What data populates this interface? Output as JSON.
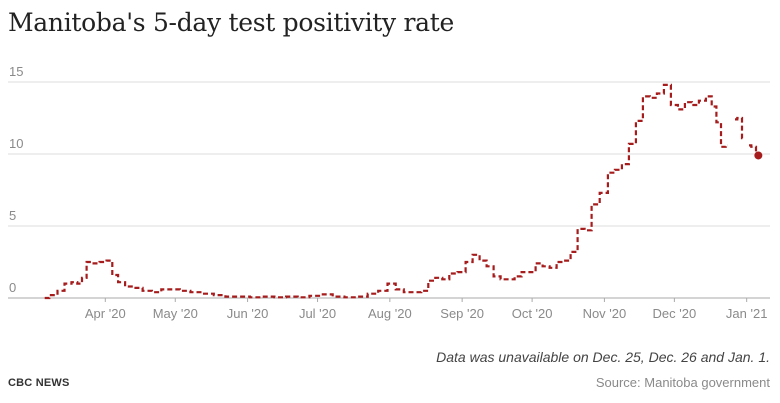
{
  "title": "Manitoba's 5-day test positivity rate",
  "note": "Data was unavailable on Dec. 25, Dec. 26 and Jan. 1.",
  "brand": "CBC NEWS",
  "source": "Source: Manitoba government",
  "colors": {
    "line": "#a61c1c",
    "grid": "#dddddd",
    "axis": "#aaaaaa",
    "text": "#8a8a8a"
  },
  "chart_data": {
    "type": "line",
    "title": "Manitoba's 5-day test positivity rate",
    "xlabel": "",
    "ylabel": "",
    "ylim": [
      0,
      15
    ],
    "yticks": [
      0,
      5,
      10,
      15
    ],
    "xticks": [
      {
        "label": "Apr '20",
        "date": "2020-04-01"
      },
      {
        "label": "May '20",
        "date": "2020-05-01"
      },
      {
        "label": "Jun '20",
        "date": "2020-06-01"
      },
      {
        "label": "Jul '20",
        "date": "2020-07-01"
      },
      {
        "label": "Aug '20",
        "date": "2020-08-01"
      },
      {
        "label": "Sep '20",
        "date": "2020-09-01"
      },
      {
        "label": "Oct '20",
        "date": "2020-10-01"
      },
      {
        "label": "Nov '20",
        "date": "2020-11-01"
      },
      {
        "label": "Dec '20",
        "date": "2020-12-01"
      },
      {
        "label": "Jan '21",
        "date": "2021-01-01"
      }
    ],
    "grid": true,
    "line_style": "dashed",
    "series": [
      {
        "points": [
          [
            "2020-03-06",
            0.0
          ],
          [
            "2020-03-10",
            0.2
          ],
          [
            "2020-03-13",
            0.5
          ],
          [
            "2020-03-16",
            1.0
          ],
          [
            "2020-03-19",
            1.1
          ],
          [
            "2020-03-21",
            1.0
          ],
          [
            "2020-03-23",
            1.4
          ],
          [
            "2020-03-25",
            2.5
          ],
          [
            "2020-03-28",
            2.4
          ],
          [
            "2020-03-31",
            2.5
          ],
          [
            "2020-04-03",
            2.6
          ],
          [
            "2020-04-05",
            1.6
          ],
          [
            "2020-04-08",
            1.1
          ],
          [
            "2020-04-11",
            0.8
          ],
          [
            "2020-04-15",
            0.7
          ],
          [
            "2020-04-19",
            0.5
          ],
          [
            "2020-04-23",
            0.4
          ],
          [
            "2020-04-27",
            0.6
          ],
          [
            "2020-05-01",
            0.6
          ],
          [
            "2020-05-05",
            0.5
          ],
          [
            "2020-05-10",
            0.4
          ],
          [
            "2020-05-15",
            0.3
          ],
          [
            "2020-05-20",
            0.2
          ],
          [
            "2020-05-25",
            0.1
          ],
          [
            "2020-05-30",
            0.1
          ],
          [
            "2020-06-05",
            0.05
          ],
          [
            "2020-06-10",
            0.1
          ],
          [
            "2020-06-15",
            0.05
          ],
          [
            "2020-06-20",
            0.1
          ],
          [
            "2020-06-25",
            0.05
          ],
          [
            "2020-06-30",
            0.15
          ],
          [
            "2020-07-05",
            0.25
          ],
          [
            "2020-07-10",
            0.1
          ],
          [
            "2020-07-15",
            0.05
          ],
          [
            "2020-07-20",
            0.1
          ],
          [
            "2020-07-25",
            0.3
          ],
          [
            "2020-07-29",
            0.5
          ],
          [
            "2020-08-02",
            1.0
          ],
          [
            "2020-08-05",
            0.6
          ],
          [
            "2020-08-09",
            0.4
          ],
          [
            "2020-08-13",
            0.4
          ],
          [
            "2020-08-16",
            0.5
          ],
          [
            "2020-08-19",
            1.2
          ],
          [
            "2020-08-22",
            1.4
          ],
          [
            "2020-08-25",
            1.3
          ],
          [
            "2020-08-28",
            1.7
          ],
          [
            "2020-09-01",
            1.8
          ],
          [
            "2020-09-04",
            2.5
          ],
          [
            "2020-09-07",
            3.0
          ],
          [
            "2020-09-10",
            2.6
          ],
          [
            "2020-09-13",
            2.2
          ],
          [
            "2020-09-16",
            1.5
          ],
          [
            "2020-09-19",
            1.3
          ],
          [
            "2020-09-22",
            1.3
          ],
          [
            "2020-09-25",
            1.5
          ],
          [
            "2020-09-28",
            1.8
          ],
          [
            "2020-10-01",
            1.8
          ],
          [
            "2020-10-04",
            2.4
          ],
          [
            "2020-10-07",
            2.2
          ],
          [
            "2020-10-10",
            2.1
          ],
          [
            "2020-10-13",
            2.5
          ],
          [
            "2020-10-16",
            2.6
          ],
          [
            "2020-10-19",
            3.2
          ],
          [
            "2020-10-22",
            4.8
          ],
          [
            "2020-10-25",
            4.7
          ],
          [
            "2020-10-28",
            6.5
          ],
          [
            "2020-11-01",
            7.3
          ],
          [
            "2020-11-04",
            8.7
          ],
          [
            "2020-11-07",
            8.9
          ],
          [
            "2020-11-10",
            9.3
          ],
          [
            "2020-11-13",
            10.7
          ],
          [
            "2020-11-16",
            12.3
          ],
          [
            "2020-11-19",
            14.0
          ],
          [
            "2020-11-22",
            13.9
          ],
          [
            "2020-11-25",
            14.2
          ],
          [
            "2020-11-28",
            14.8
          ],
          [
            "2020-12-01",
            13.4
          ],
          [
            "2020-12-04",
            13.1
          ],
          [
            "2020-12-07",
            13.6
          ],
          [
            "2020-12-10",
            13.4
          ],
          [
            "2020-12-13",
            13.7
          ],
          [
            "2020-12-16",
            14.0
          ],
          [
            "2020-12-18",
            13.3
          ],
          [
            "2020-12-20",
            12.2
          ],
          [
            "2020-12-22",
            10.5
          ],
          [
            "2020-12-24",
            10.6
          ],
          null,
          [
            "2020-12-27",
            12.4
          ],
          [
            "2020-12-29",
            12.5
          ],
          [
            "2020-12-31",
            11.1
          ],
          null,
          [
            "2021-01-02",
            10.6
          ],
          [
            "2021-01-04",
            10.5
          ],
          [
            "2021-01-06",
            9.9
          ]
        ],
        "last_point": [
          "2021-01-06",
          9.9
        ]
      }
    ]
  }
}
